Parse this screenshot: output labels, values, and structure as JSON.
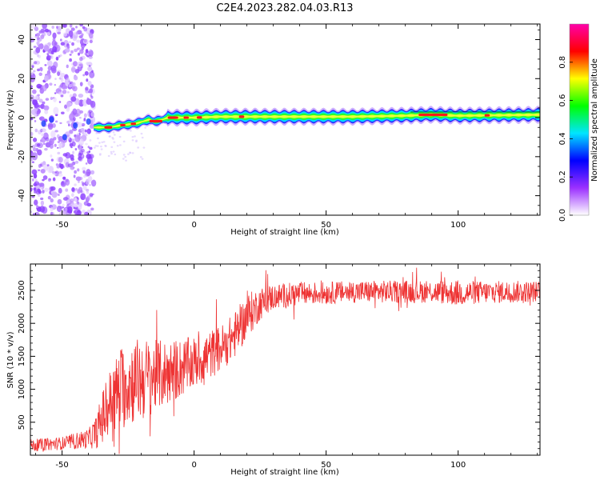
{
  "figure": {
    "title": "C2E4.2023.282.04.03.R13"
  },
  "chart_data": [
    {
      "type": "heatmap",
      "xlabel": "Height of straight line (km)",
      "ylabel": "Frequency (Hz)",
      "xlim": [
        -62,
        131
      ],
      "ylim": [
        -50,
        48
      ],
      "xticks": [
        -50,
        0,
        50,
        100
      ],
      "yticks": [
        -40,
        -20,
        0,
        20,
        40
      ],
      "colorbar": {
        "label": "Normalized spectral amplitude",
        "range": [
          0,
          1
        ],
        "ticks": [
          0.0,
          0.2,
          0.4,
          0.6,
          0.8
        ],
        "colormap": [
          "#ffffff",
          "#9b30ff",
          "#0000ff",
          "#00e5ff",
          "#00ff00",
          "#ffff00",
          "#ff0000",
          "#ff00aa"
        ]
      },
      "noise_region_x": [
        -62,
        -38
      ],
      "ridge": [
        {
          "x": -38,
          "y": -5
        },
        {
          "x": -32,
          "y": -5
        },
        {
          "x": -28,
          "y": -4
        },
        {
          "x": -22,
          "y": -3
        },
        {
          "x": -17,
          "y": -1
        },
        {
          "x": -15,
          "y": -2
        },
        {
          "x": -12,
          "y": -1
        },
        {
          "x": -10,
          "y": 0
        },
        {
          "x": -5,
          "y": 0
        },
        {
          "x": 0,
          "y": 0
        },
        {
          "x": 10,
          "y": 0.5
        },
        {
          "x": 20,
          "y": 0.5
        },
        {
          "x": 40,
          "y": 0.5
        },
        {
          "x": 60,
          "y": 0.5
        },
        {
          "x": 80,
          "y": 1
        },
        {
          "x": 90,
          "y": 1.5
        },
        {
          "x": 100,
          "y": 1
        },
        {
          "x": 131,
          "y": 1.5
        }
      ]
    },
    {
      "type": "line",
      "xlabel": "Height of straight line (km)",
      "ylabel": "SNR (10 * v/v)",
      "xlim": [
        -62,
        131
      ],
      "ylim": [
        0,
        2900
      ],
      "xticks": [
        -50,
        0,
        50,
        100
      ],
      "yticks": [
        500,
        1000,
        1500,
        2000,
        2500
      ],
      "series": [
        {
          "color": "#ee3333",
          "envelope": {
            "x": [
              -62,
              -50,
              -40,
              -37,
              -35,
              -32,
              -28,
              -25,
              -20,
              -15,
              -10,
              -5,
              0,
              5,
              10,
              15,
              20,
              25,
              30,
              40,
              50,
              60,
              70,
              80,
              90,
              100,
              110,
              120,
              131
            ],
            "y": [
              150,
              180,
              250,
              350,
              550,
              800,
              1000,
              1100,
              1150,
              1200,
              1250,
              1320,
              1400,
              1500,
              1620,
              1800,
              2100,
              2300,
              2400,
              2450,
              2460,
              2480,
              2480,
              2480,
              2480,
              2460,
              2470,
              2480,
              2480
            ],
            "amp": [
              90,
              100,
              150,
              250,
              400,
              500,
              650,
              650,
              650,
              550,
              500,
              450,
              400,
              380,
              350,
              350,
              350,
              250,
              200,
              180,
              170,
              170,
              170,
              170,
              170,
              200,
              170,
              170,
              160
            ]
          }
        }
      ]
    }
  ]
}
